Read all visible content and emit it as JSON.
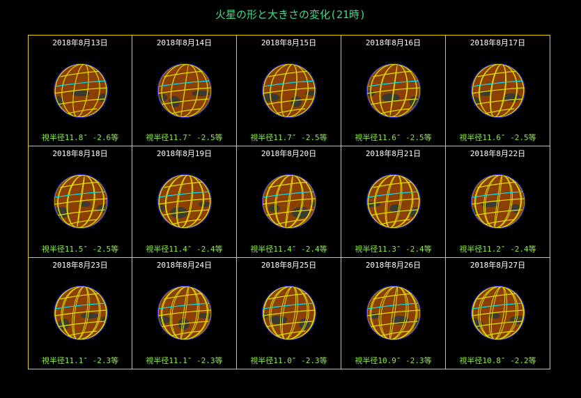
{
  "title": "火星の形と大きさの変化(21時)",
  "colors": {
    "title": "#3fdc8c",
    "frame": "#e8d000",
    "date": "#ffffff",
    "info": "#8cf040",
    "mars": "#8b3f02",
    "dark": "#3a3a30",
    "grid": "#e0e000",
    "equator": "#00e0ff"
  },
  "panels": [
    {
      "date": "2018年8月13日",
      "info": "視半径11.8″ -2.6等"
    },
    {
      "date": "2018年8月14日",
      "info": "視半径11.7″ -2.5等"
    },
    {
      "date": "2018年8月15日",
      "info": "視半径11.7″ -2.5等"
    },
    {
      "date": "2018年8月16日",
      "info": "視半径11.6″ -2.5等"
    },
    {
      "date": "2018年8月17日",
      "info": "視半径11.6″ -2.5等"
    },
    {
      "date": "2018年8月18日",
      "info": "視半径11.5″ -2.5等"
    },
    {
      "date": "2018年8月19日",
      "info": "視半径11.4″ -2.4等"
    },
    {
      "date": "2018年8月20日",
      "info": "視半径11.4″ -2.4等"
    },
    {
      "date": "2018年8月21日",
      "info": "視半径11.3″ -2.4等"
    },
    {
      "date": "2018年8月22日",
      "info": "視半径11.2″ -2.4等"
    },
    {
      "date": "2018年8月23日",
      "info": "視半径11.1″ -2.3等"
    },
    {
      "date": "2018年8月24日",
      "info": "視半径11.1″ -2.3等"
    },
    {
      "date": "2018年8月25日",
      "info": "視半径11.0″ -2.3等"
    },
    {
      "date": "2018年8月26日",
      "info": "視半径10.9″ -2.3等"
    },
    {
      "date": "2018年8月27日",
      "info": "視半径10.8″ -2.2等"
    }
  ]
}
